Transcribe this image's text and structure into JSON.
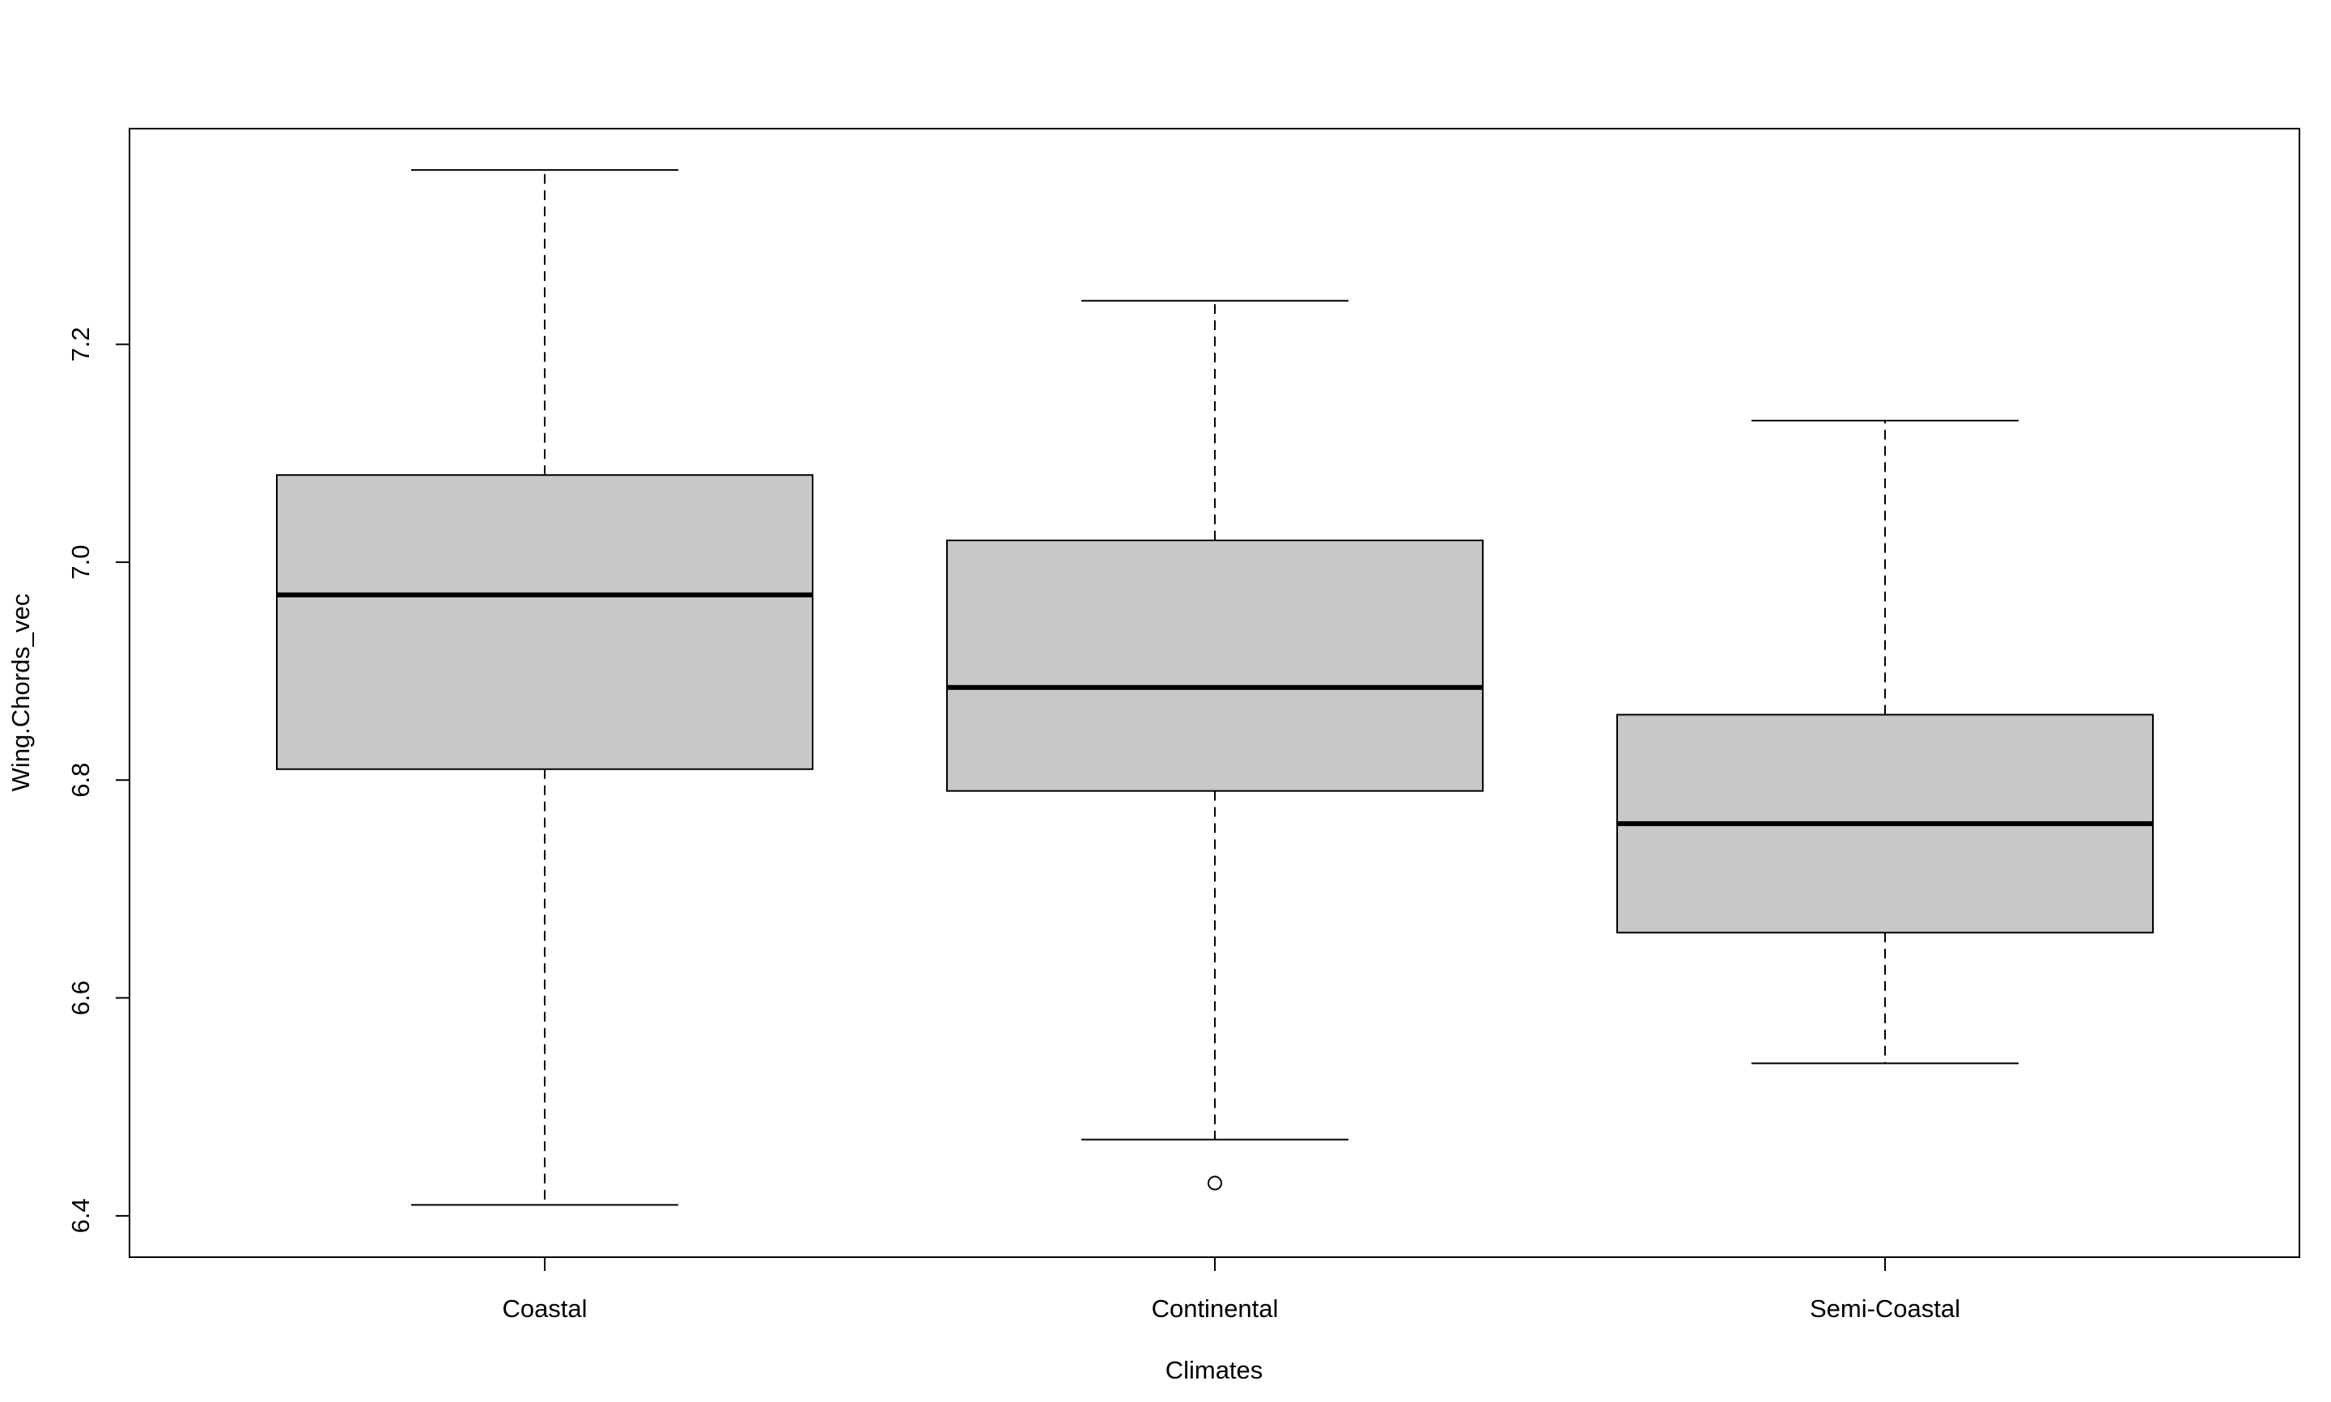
{
  "chart_data": {
    "type": "boxplot",
    "title": "",
    "xlabel": "Climates",
    "ylabel": "Wing.Chords_vec",
    "ylim": [
      6.362,
      7.398
    ],
    "yticks": [
      "6.4",
      "6.6",
      "6.8",
      "7.0",
      "7.2"
    ],
    "categories": [
      "Coastal",
      "Continental",
      "Semi-Coastal"
    ],
    "boxes": [
      {
        "category": "Coastal",
        "whisker_low": 6.41,
        "q1": 6.81,
        "median": 6.97,
        "q3": 7.08,
        "whisker_high": 7.36,
        "outliers": []
      },
      {
        "category": "Continental",
        "whisker_low": 6.47,
        "q1": 6.79,
        "median": 6.885,
        "q3": 7.02,
        "whisker_high": 7.24,
        "outliers": [
          6.43
        ]
      },
      {
        "category": "Semi-Coastal",
        "whisker_low": 6.54,
        "q1": 6.66,
        "median": 6.76,
        "q3": 6.86,
        "whisker_high": 7.13,
        "outliers": []
      }
    ],
    "grid": false,
    "legend": "none"
  },
  "colors": {
    "box_fill": "#c8c8c8",
    "stroke": "#000000",
    "background": "#ffffff"
  }
}
